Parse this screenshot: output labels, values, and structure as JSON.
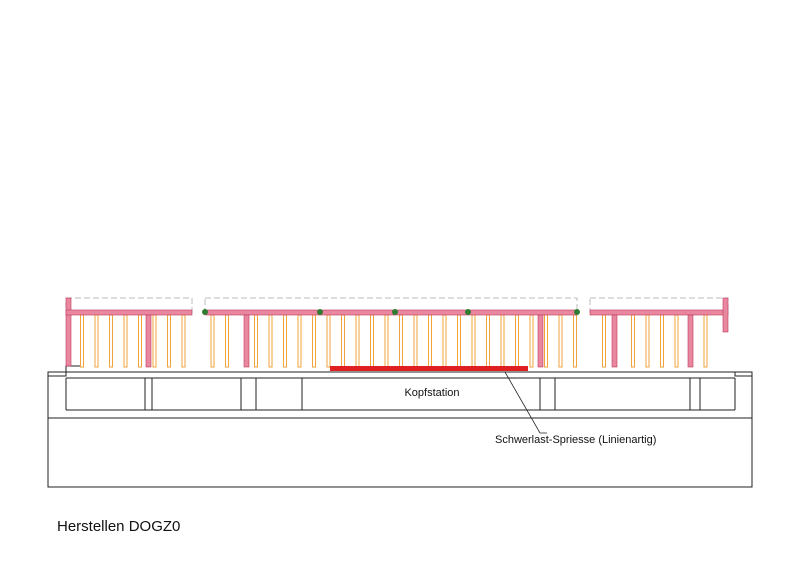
{
  "labels": {
    "station": "Kopfstation",
    "props": "Schwerlast-Spriesse (Linienartig)"
  },
  "caption": "Herstellen DOGZ0"
}
